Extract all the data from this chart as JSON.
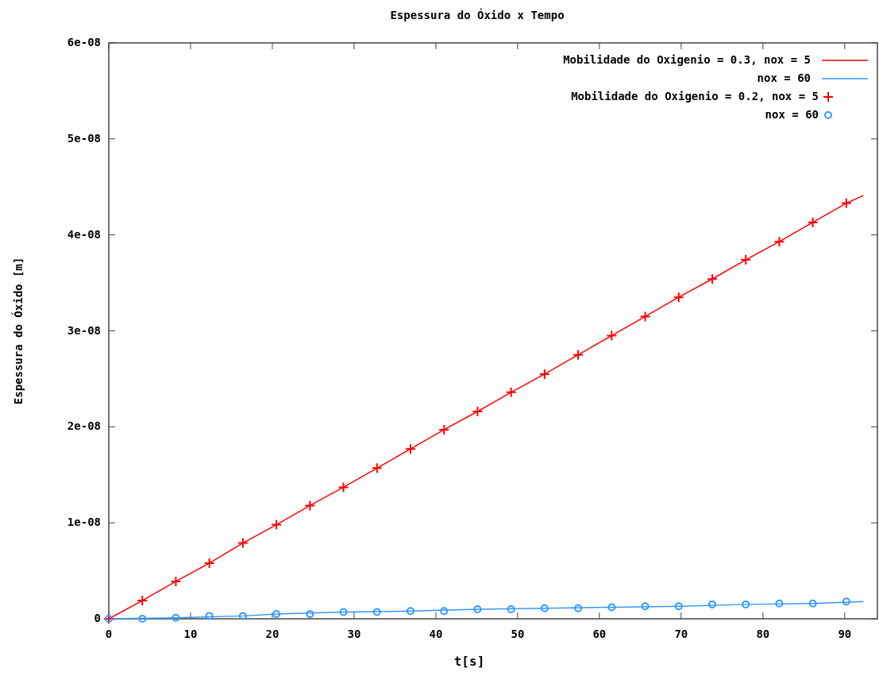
{
  "chart_data": {
    "type": "line",
    "title": "Espessura do Óxido x Tempo",
    "xlabel": "t[s]",
    "ylabel": "Espessura do Óxido [m]",
    "xlim": [
      0,
      94
    ],
    "xticks": [
      0,
      10,
      20,
      30,
      40,
      50,
      60,
      70,
      80,
      90
    ],
    "ylim": [
      0,
      6e-08
    ],
    "yticks": [
      0,
      {
        "value": 1e-08,
        "label": "1e-08"
      },
      {
        "value": 2e-08,
        "label": "2e-08"
      },
      {
        "value": 3e-08,
        "label": "3e-08"
      },
      {
        "value": 4e-08,
        "label": "4e-08"
      },
      {
        "value": 5e-08,
        "label": "5e-08"
      },
      {
        "value": 6e-08,
        "label": "6e-08"
      }
    ],
    "grid": false,
    "legend": "top right",
    "series": [
      {
        "name": "Mobilidade do Oxigenio = 0.3, nox = 5",
        "color": "#ff0000",
        "marker": "none",
        "x": [
          0,
          4.1,
          8.2,
          12.3,
          16.4,
          20.5,
          24.6,
          28.7,
          32.8,
          36.9,
          41,
          45.1,
          49.2,
          53.3,
          57.4,
          61.5,
          65.6,
          69.7,
          73.8,
          77.9,
          82,
          86.1,
          90.2,
          92.3
        ],
        "values": [
          0,
          1.9e-09,
          3.9e-09,
          5.8e-09,
          7.9e-09,
          9.8e-09,
          1.18e-08,
          1.37e-08,
          1.57e-08,
          1.77e-08,
          1.97e-08,
          2.16e-08,
          2.36e-08,
          2.55e-08,
          2.75e-08,
          2.95e-08,
          3.15e-08,
          3.35e-08,
          3.54e-08,
          3.74e-08,
          3.93e-08,
          4.13e-08,
          4.33e-08,
          4.41e-08
        ]
      },
      {
        "name": "nox = 60",
        "color": "#3399ff",
        "marker": "none",
        "x": [
          0,
          8.2,
          16.4,
          20.5,
          28.7,
          36.9,
          45.1,
          53.3,
          61.5,
          69.7,
          77.9,
          86.1,
          92.3
        ],
        "values": [
          0,
          1e-10,
          3e-10,
          5e-10,
          7e-10,
          8e-10,
          1e-09,
          1.1e-09,
          1.2e-09,
          1.3e-09,
          1.5e-09,
          1.6e-09,
          1.8e-09
        ]
      },
      {
        "name": "Mobilidade do Oxigenio = 0.2, nox = 5",
        "type": "scatter",
        "color": "#ff0000",
        "marker": "cross",
        "x": [
          0,
          4.1,
          8.2,
          12.3,
          16.4,
          20.5,
          24.6,
          28.7,
          32.8,
          36.9,
          41,
          45.1,
          49.2,
          53.3,
          57.4,
          61.5,
          65.6,
          69.7,
          73.8,
          77.9,
          82,
          86.1,
          90.2
        ],
        "values": [
          0,
          1.9e-09,
          3.9e-09,
          5.8e-09,
          7.9e-09,
          9.8e-09,
          1.18e-08,
          1.37e-08,
          1.57e-08,
          1.77e-08,
          1.97e-08,
          2.16e-08,
          2.36e-08,
          2.55e-08,
          2.75e-08,
          2.95e-08,
          3.15e-08,
          3.35e-08,
          3.54e-08,
          3.74e-08,
          3.93e-08,
          4.13e-08,
          4.33e-08
        ]
      },
      {
        "name": "nox = 60",
        "type": "scatter",
        "color": "#3399ff",
        "marker": "circle",
        "x": [
          0,
          4.1,
          8.2,
          12.3,
          16.4,
          20.5,
          24.6,
          28.7,
          32.8,
          36.9,
          41,
          45.1,
          49.2,
          53.3,
          57.4,
          61.5,
          65.6,
          69.7,
          73.8,
          77.9,
          82,
          86.1,
          90.2
        ],
        "values": [
          0,
          0,
          1e-10,
          3e-10,
          3e-10,
          5e-10,
          5e-10,
          7e-10,
          7e-10,
          8e-10,
          8e-10,
          1e-09,
          1e-09,
          1.1e-09,
          1.1e-09,
          1.2e-09,
          1.3e-09,
          1.3e-09,
          1.5e-09,
          1.5e-09,
          1.6e-09,
          1.6e-09,
          1.8e-09
        ]
      }
    ]
  }
}
